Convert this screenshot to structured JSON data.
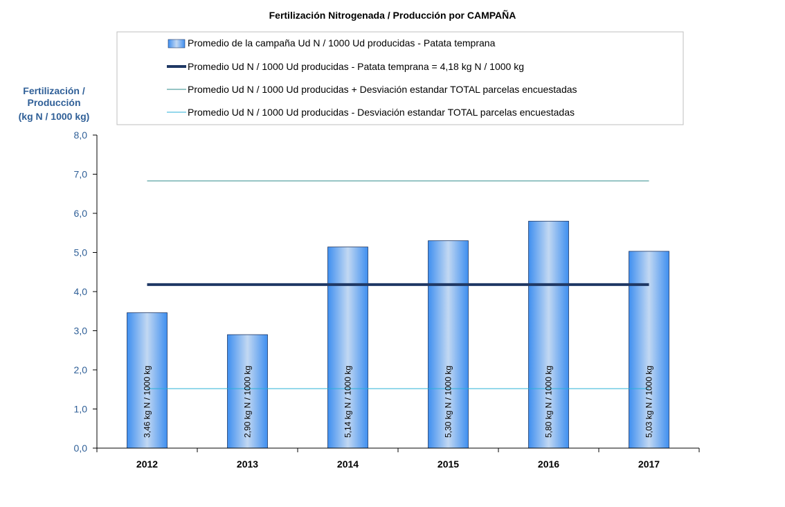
{
  "chart_data": {
    "type": "bar",
    "title": "Fertilización Nitrogenada / Producción por CAMPAÑA",
    "ylabel": [
      "Fertilización /",
      "Producción",
      "(kg N / 1000 kg)"
    ],
    "xlabel": "",
    "ylim": [
      0,
      8
    ],
    "yticks": [
      "0,0",
      "1,0",
      "2,0",
      "3,0",
      "4,0",
      "5,0",
      "6,0",
      "7,0",
      "8,0"
    ],
    "categories": [
      "2012",
      "2013",
      "2014",
      "2015",
      "2016",
      "2017"
    ],
    "series": [
      {
        "name": "Promedio de la campaña Ud N / 1000 Ud producidas - Patata temprana",
        "values": [
          3.46,
          2.9,
          5.14,
          5.3,
          5.8,
          5.03
        ],
        "labels": [
          "3,46 kg N / 1000 kg",
          "2,90 kg N / 1000 kg",
          "5,14 kg N / 1000 kg",
          "5,30 kg N / 1000 kg",
          "5,80 kg N / 1000 kg",
          "5,03 kg N / 1000 kg"
        ],
        "color": "#3f8ff0"
      }
    ],
    "lines": [
      {
        "name": "Promedio Ud N / 1000 Ud producidas - Patata temprana = 4,18 kg N / 1000 kg",
        "value": 4.18,
        "color": "#1f3864"
      },
      {
        "name": "Promedio Ud N / 1000 Ud producidas + Desviación estandar TOTAL parcelas encuestadas",
        "value": 6.83,
        "color": "#2e8b8b"
      },
      {
        "name": "Promedio Ud N / 1000 Ud producidas - Desviación estandar TOTAL parcelas encuestadas",
        "value": 1.52,
        "color": "#2ab0d8"
      }
    ],
    "grid": false,
    "legend_position": "top"
  }
}
